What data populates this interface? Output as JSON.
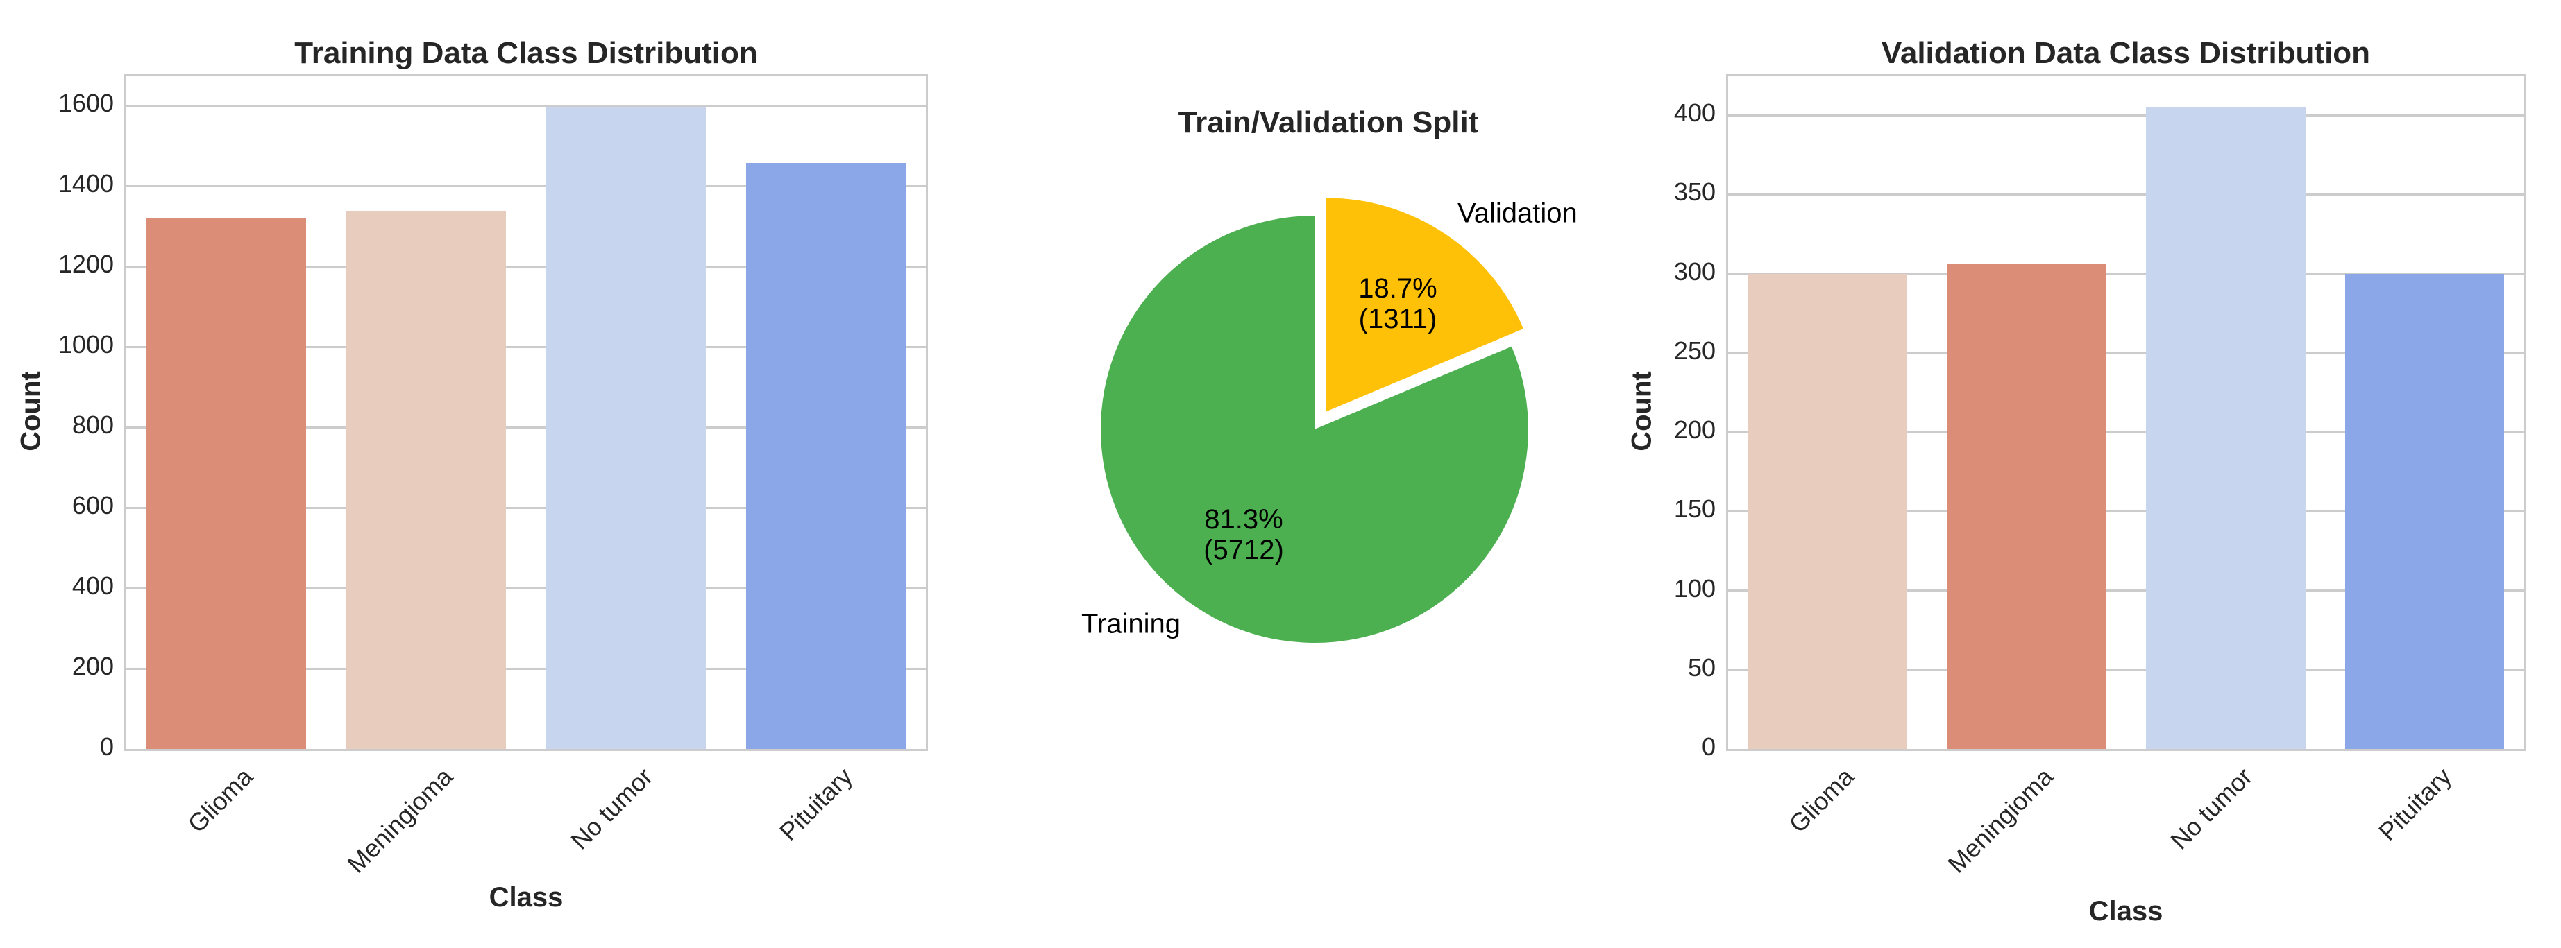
{
  "chart_data": [
    {
      "type": "bar",
      "title": "Training Data Class Distribution",
      "xlabel": "Class",
      "ylabel": "Count",
      "categories": [
        "Glioma",
        "Meningioma",
        "No tumor",
        "Pituitary"
      ],
      "values": [
        1321,
        1339,
        1595,
        1457
      ],
      "colors": [
        "#dc8d77",
        "#e8cdbf",
        "#c7d5ef",
        "#8ba7e8"
      ],
      "yticks": [
        0,
        200,
        400,
        600,
        800,
        1000,
        1200,
        1400,
        1600
      ],
      "ylim": [
        0,
        1675
      ],
      "grid": true
    },
    {
      "type": "pie",
      "title": "Train/Validation Split",
      "categories": [
        "Training",
        "Validation"
      ],
      "values": [
        5712,
        1311
      ],
      "percent_labels": [
        "81.3%",
        "18.7%"
      ],
      "count_labels": [
        "(5712)",
        "(1311)"
      ],
      "colors": [
        "#4caf50",
        "#ffc107"
      ],
      "explode": [
        0,
        0.1
      ]
    },
    {
      "type": "bar",
      "title": "Validation Data Class Distribution",
      "xlabel": "Class",
      "ylabel": "Count",
      "categories": [
        "Glioma",
        "Meningioma",
        "No tumor",
        "Pituitary"
      ],
      "values": [
        300,
        306,
        405,
        300
      ],
      "colors": [
        "#e8cdbf",
        "#dc8d77",
        "#c7d5ef",
        "#8ba7e8"
      ],
      "yticks": [
        0,
        50,
        100,
        150,
        200,
        250,
        300,
        350,
        400
      ],
      "ylim": [
        0,
        425
      ],
      "grid": true
    }
  ]
}
